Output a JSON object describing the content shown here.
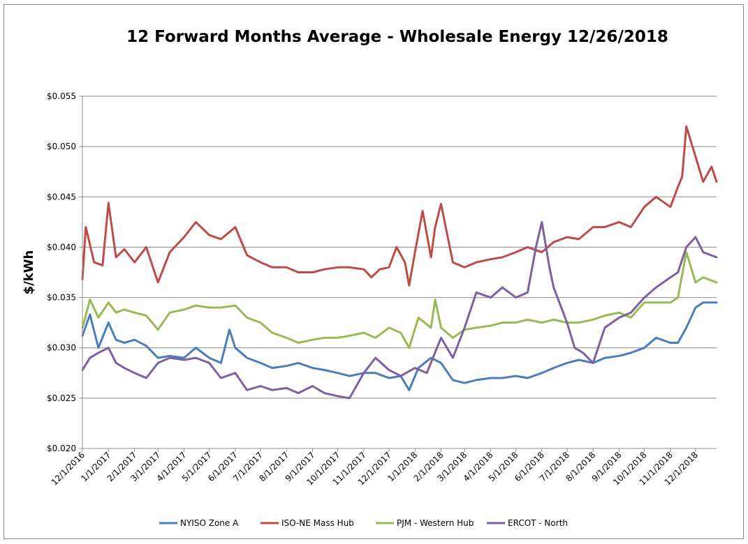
{
  "chart_data": {
    "type": "line",
    "title": "12 Forward Months Average - Wholesale Energy 12/26/2018",
    "ylabel": "$/kWh",
    "xlabel": "",
    "ylim": [
      0.02,
      0.055
    ],
    "yticks": [
      0.02,
      0.025,
      0.03,
      0.035,
      0.04,
      0.045,
      0.05,
      0.055
    ],
    "ytick_labels": [
      "$0.020",
      "$0.025",
      "$0.030",
      "$0.035",
      "$0.040",
      "$0.045",
      "$0.050",
      "$0.055"
    ],
    "x_range": [
      "12/1/2016",
      "12/26/2018"
    ],
    "xtick_labels": [
      "12/1/2016",
      "1/1/2017",
      "2/1/2017",
      "3/1/2017",
      "4/1/2017",
      "5/1/2017",
      "6/1/2017",
      "7/1/2017",
      "8/1/2017",
      "9/1/2017",
      "10/1/2017",
      "11/1/2017",
      "12/1/2017",
      "1/1/2018",
      "2/1/2018",
      "3/1/2018",
      "4/1/2018",
      "5/1/2018",
      "6/1/2018",
      "7/1/2018",
      "8/1/2018",
      "9/1/2018",
      "10/1/2018",
      "11/1/2018",
      "12/1/2018"
    ],
    "grid": "horizontal",
    "legend": "bottom",
    "series": [
      {
        "name": "NYISO Zone A",
        "color": "#4a7ebb",
        "x": [
          "12/1/2016",
          "12/10/2016",
          "12/20/2016",
          "1/1/2017",
          "1/10/2017",
          "1/20/2017",
          "2/1/2017",
          "2/15/2017",
          "3/1/2017",
          "3/15/2017",
          "4/1/2017",
          "4/15/2017",
          "5/1/2017",
          "5/15/2017",
          "5/25/2017",
          "6/1/2017",
          "6/15/2017",
          "7/1/2017",
          "7/15/2017",
          "8/1/2017",
          "8/15/2017",
          "9/1/2017",
          "9/15/2017",
          "10/1/2017",
          "10/15/2017",
          "11/1/2017",
          "11/15/2017",
          "12/1/2017",
          "12/15/2017",
          "12/25/2017",
          "1/5/2018",
          "1/20/2018",
          "2/1/2018",
          "2/15/2018",
          "3/1/2018",
          "3/15/2018",
          "4/1/2018",
          "4/15/2018",
          "5/1/2018",
          "5/15/2018",
          "6/1/2018",
          "6/15/2018",
          "7/1/2018",
          "7/15/2018",
          "8/1/2018",
          "8/15/2018",
          "9/1/2018",
          "9/15/2018",
          "10/1/2018",
          "10/15/2018",
          "11/1/2018",
          "11/10/2018",
          "11/20/2018",
          "12/1/2018",
          "12/10/2018",
          "12/26/2018"
        ],
        "y": [
          0.0312,
          0.0333,
          0.03,
          0.0325,
          0.0308,
          0.0305,
          0.0308,
          0.0302,
          0.029,
          0.0292,
          0.029,
          0.03,
          0.029,
          0.0285,
          0.0318,
          0.03,
          0.029,
          0.0285,
          0.028,
          0.0282,
          0.0285,
          0.028,
          0.0278,
          0.0275,
          0.0272,
          0.0275,
          0.0275,
          0.027,
          0.0272,
          0.0258,
          0.028,
          0.029,
          0.0285,
          0.0268,
          0.0265,
          0.0268,
          0.027,
          0.027,
          0.0272,
          0.027,
          0.0275,
          0.028,
          0.0285,
          0.0288,
          0.0285,
          0.029,
          0.0292,
          0.0295,
          0.03,
          0.031,
          0.0305,
          0.0305,
          0.032,
          0.034,
          0.0345,
          0.0345
        ]
      },
      {
        "name": "ISO-NE Mass Hub",
        "color": "#be4b48",
        "x": [
          "12/1/2016",
          "12/5/2016",
          "12/15/2016",
          "12/25/2016",
          "1/1/2017",
          "1/10/2017",
          "1/20/2017",
          "2/1/2017",
          "2/15/2017",
          "3/1/2017",
          "3/15/2017",
          "4/1/2017",
          "4/15/2017",
          "5/1/2017",
          "5/15/2017",
          "6/1/2017",
          "6/15/2017",
          "7/1/2017",
          "7/15/2017",
          "8/1/2017",
          "8/15/2017",
          "9/1/2017",
          "9/15/2017",
          "10/1/2017",
          "10/15/2017",
          "11/1/2017",
          "11/10/2017",
          "11/20/2017",
          "12/1/2017",
          "12/10/2017",
          "12/20/2017",
          "12/25/2017",
          "1/1/2018",
          "1/10/2018",
          "1/20/2018",
          "1/25/2018",
          "2/1/2018",
          "2/15/2018",
          "3/1/2018",
          "3/15/2018",
          "4/1/2018",
          "4/15/2018",
          "5/1/2018",
          "5/15/2018",
          "6/1/2018",
          "6/15/2018",
          "7/1/2018",
          "7/15/2018",
          "8/1/2018",
          "8/15/2018",
          "9/1/2018",
          "9/15/2018",
          "10/1/2018",
          "10/15/2018",
          "11/1/2018",
          "11/10/2018",
          "11/15/2018",
          "11/20/2018",
          "12/1/2018",
          "12/10/2018",
          "12/20/2018",
          "12/26/2018"
        ],
        "y": [
          0.0368,
          0.042,
          0.0385,
          0.0382,
          0.0444,
          0.039,
          0.0398,
          0.0385,
          0.04,
          0.0365,
          0.0395,
          0.041,
          0.0425,
          0.0412,
          0.0408,
          0.042,
          0.0392,
          0.0385,
          0.038,
          0.038,
          0.0375,
          0.0375,
          0.0378,
          0.038,
          0.038,
          0.0378,
          0.037,
          0.0378,
          0.038,
          0.04,
          0.0385,
          0.0362,
          0.0395,
          0.0436,
          0.039,
          0.042,
          0.0443,
          0.0385,
          0.038,
          0.0385,
          0.0388,
          0.039,
          0.0395,
          0.04,
          0.0395,
          0.0405,
          0.041,
          0.0408,
          0.042,
          0.042,
          0.0425,
          0.042,
          0.044,
          0.045,
          0.044,
          0.046,
          0.047,
          0.052,
          0.049,
          0.0465,
          0.048,
          0.0465
        ]
      },
      {
        "name": "PJM - Western Hub",
        "color": "#98b954",
        "x": [
          "12/1/2016",
          "12/10/2016",
          "12/20/2016",
          "1/1/2017",
          "1/10/2017",
          "1/20/2017",
          "2/1/2017",
          "2/15/2017",
          "3/1/2017",
          "3/15/2017",
          "4/1/2017",
          "4/15/2017",
          "5/1/2017",
          "5/15/2017",
          "6/1/2017",
          "6/15/2017",
          "7/1/2017",
          "7/15/2017",
          "8/1/2017",
          "8/15/2017",
          "9/1/2017",
          "9/15/2017",
          "10/1/2017",
          "10/15/2017",
          "11/1/2017",
          "11/15/2017",
          "12/1/2017",
          "12/15/2017",
          "12/25/2017",
          "1/5/2018",
          "1/20/2018",
          "1/25/2018",
          "2/1/2018",
          "2/15/2018",
          "3/1/2018",
          "3/15/2018",
          "4/1/2018",
          "4/15/2018",
          "5/1/2018",
          "5/15/2018",
          "6/1/2018",
          "6/15/2018",
          "7/1/2018",
          "7/15/2018",
          "8/1/2018",
          "8/15/2018",
          "9/1/2018",
          "9/15/2018",
          "10/1/2018",
          "10/15/2018",
          "11/1/2018",
          "11/10/2018",
          "11/20/2018",
          "12/1/2018",
          "12/10/2018",
          "12/26/2018"
        ],
        "y": [
          0.032,
          0.0348,
          0.033,
          0.0345,
          0.0335,
          0.0338,
          0.0335,
          0.0332,
          0.0318,
          0.0335,
          0.0338,
          0.0342,
          0.034,
          0.034,
          0.0342,
          0.033,
          0.0325,
          0.0315,
          0.031,
          0.0305,
          0.0308,
          0.031,
          0.031,
          0.0312,
          0.0315,
          0.031,
          0.032,
          0.0315,
          0.03,
          0.033,
          0.032,
          0.0348,
          0.032,
          0.031,
          0.0318,
          0.032,
          0.0322,
          0.0325,
          0.0325,
          0.0328,
          0.0325,
          0.0328,
          0.0325,
          0.0325,
          0.0328,
          0.0332,
          0.0335,
          0.033,
          0.0345,
          0.0345,
          0.0345,
          0.035,
          0.0395,
          0.0365,
          0.037,
          0.0365
        ]
      },
      {
        "name": "ERCOT - North",
        "color": "#7d60a0",
        "x": [
          "12/1/2016",
          "12/10/2016",
          "12/20/2016",
          "1/1/2017",
          "1/10/2017",
          "1/20/2017",
          "2/1/2017",
          "2/15/2017",
          "3/1/2017",
          "3/15/2017",
          "4/1/2017",
          "4/15/2017",
          "5/1/2017",
          "5/15/2017",
          "6/1/2017",
          "6/15/2017",
          "7/1/2017",
          "7/15/2017",
          "8/1/2017",
          "8/15/2017",
          "9/1/2017",
          "9/15/2017",
          "10/1/2017",
          "10/15/2017",
          "11/1/2017",
          "11/15/2017",
          "12/1/2017",
          "12/15/2017",
          "1/1/2018",
          "1/15/2018",
          "2/1/2018",
          "2/15/2018",
          "3/1/2018",
          "3/15/2018",
          "4/1/2018",
          "4/15/2018",
          "5/1/2018",
          "5/15/2018",
          "5/25/2018",
          "6/1/2018",
          "6/10/2018",
          "6/15/2018",
          "7/1/2018",
          "7/10/2018",
          "7/20/2018",
          "8/1/2018",
          "8/15/2018",
          "9/1/2018",
          "9/15/2018",
          "10/1/2018",
          "10/15/2018",
          "11/1/2018",
          "11/10/2018",
          "11/20/2018",
          "12/1/2018",
          "12/10/2018",
          "12/26/2018"
        ],
        "y": [
          0.0278,
          0.029,
          0.0295,
          0.03,
          0.0285,
          0.028,
          0.0275,
          0.027,
          0.0285,
          0.029,
          0.0288,
          0.029,
          0.0285,
          0.027,
          0.0275,
          0.0258,
          0.0262,
          0.0258,
          0.026,
          0.0255,
          0.0262,
          0.0255,
          0.0252,
          0.025,
          0.0275,
          0.029,
          0.0278,
          0.0272,
          0.028,
          0.0275,
          0.031,
          0.029,
          0.032,
          0.0355,
          0.035,
          0.036,
          0.035,
          0.0355,
          0.04,
          0.0425,
          0.038,
          0.036,
          0.0325,
          0.03,
          0.0295,
          0.0285,
          0.032,
          0.033,
          0.0335,
          0.035,
          0.036,
          0.037,
          0.0375,
          0.04,
          0.041,
          0.0395,
          0.039
        ]
      }
    ]
  }
}
